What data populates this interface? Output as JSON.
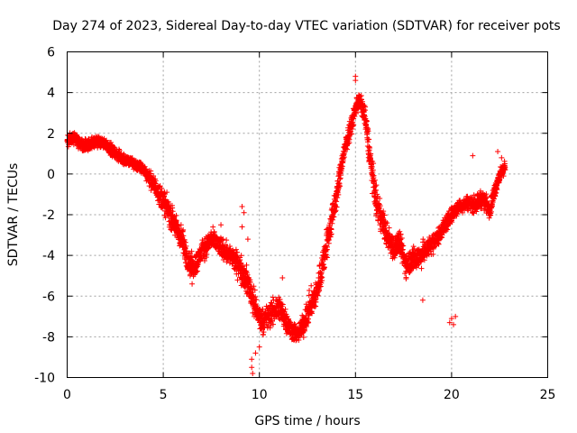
{
  "chart_data": {
    "type": "scatter",
    "title": "Day 274 of 2023, Sidereal Day-to-day VTEC variation (SDTVAR) for receiver pots",
    "xlabel": "GPS time / hours",
    "ylabel": "SDTVAR / TECUs",
    "xlim": [
      0,
      25
    ],
    "ylim": [
      -10,
      6
    ],
    "xticks": [
      0,
      5,
      10,
      15,
      20,
      25
    ],
    "yticks": [
      -10,
      -8,
      -6,
      -4,
      -2,
      0,
      2,
      4,
      6
    ],
    "grid": true,
    "marker": "+",
    "color": "#ff0000",
    "series": [
      {
        "name": "SDTVAR",
        "trend": {
          "x": [
            0.0,
            0.3,
            0.6,
            1.0,
            1.5,
            2.0,
            2.5,
            3.0,
            3.5,
            4.0,
            4.5,
            5.0,
            5.5,
            6.0,
            6.3,
            6.6,
            7.0,
            7.5,
            8.0,
            8.5,
            9.0,
            9.5,
            9.8,
            10.1,
            10.4,
            10.7,
            11.0,
            11.3,
            11.6,
            12.0,
            12.3,
            12.6,
            13.0,
            13.3,
            13.6,
            14.0,
            14.3,
            14.6,
            14.9,
            15.1,
            15.3,
            15.5,
            15.8,
            16.1,
            16.4,
            16.7,
            17.0,
            17.3,
            17.6,
            18.0,
            18.4,
            18.8,
            19.2,
            19.6,
            20.0,
            20.4,
            20.8,
            21.2,
            21.6,
            22.0,
            22.4,
            22.8
          ],
          "y": [
            1.5,
            1.8,
            1.6,
            1.4,
            1.6,
            1.5,
            1.0,
            0.7,
            0.5,
            0.2,
            -0.5,
            -1.3,
            -2.3,
            -3.3,
            -4.3,
            -4.6,
            -3.8,
            -3.2,
            -3.6,
            -4.0,
            -4.6,
            -5.6,
            -6.6,
            -7.2,
            -7.1,
            -6.8,
            -6.5,
            -7.0,
            -7.6,
            -7.9,
            -7.4,
            -6.6,
            -5.8,
            -4.4,
            -3.0,
            -1.2,
            0.6,
            1.8,
            2.8,
            3.6,
            3.4,
            2.8,
            0.5,
            -1.5,
            -2.3,
            -3.2,
            -3.6,
            -3.4,
            -4.4,
            -4.2,
            -4.0,
            -3.6,
            -3.2,
            -2.6,
            -2.0,
            -1.6,
            -1.4,
            -1.5,
            -1.2,
            -1.7,
            -0.3,
            0.4
          ],
          "spread": [
            0.45,
            0.45,
            0.45,
            0.45,
            0.4,
            0.4,
            0.4,
            0.4,
            0.4,
            0.4,
            0.6,
            0.8,
            0.9,
            0.9,
            0.8,
            0.8,
            0.7,
            0.7,
            0.7,
            0.7,
            0.9,
            1.0,
            1.0,
            0.8,
            0.9,
            0.9,
            0.9,
            0.9,
            0.7,
            0.6,
            0.8,
            1.0,
            1.0,
            1.1,
            1.1,
            0.9,
            0.7,
            0.6,
            0.6,
            0.6,
            0.6,
            0.8,
            1.0,
            1.0,
            0.9,
            0.9,
            0.9,
            0.8,
            0.9,
            0.9,
            0.8,
            0.7,
            0.6,
            0.6,
            0.5,
            0.5,
            0.5,
            0.6,
            0.6,
            0.6,
            0.5,
            0.4
          ]
        },
        "outliers": [
          {
            "x": 6.5,
            "y": -5.4
          },
          {
            "x": 6.4,
            "y": -5.0
          },
          {
            "x": 8.0,
            "y": -2.5
          },
          {
            "x": 9.1,
            "y": -2.6
          },
          {
            "x": 9.2,
            "y": -1.9
          },
          {
            "x": 9.1,
            "y": -1.6
          },
          {
            "x": 9.4,
            "y": -3.2
          },
          {
            "x": 9.6,
            "y": -9.1
          },
          {
            "x": 9.6,
            "y": -9.5
          },
          {
            "x": 9.65,
            "y": -9.8
          },
          {
            "x": 9.8,
            "y": -8.8
          },
          {
            "x": 10.0,
            "y": -8.5
          },
          {
            "x": 10.2,
            "y": -7.9
          },
          {
            "x": 11.2,
            "y": -5.1
          },
          {
            "x": 15.0,
            "y": 4.8
          },
          {
            "x": 15.0,
            "y": 4.6
          },
          {
            "x": 20.0,
            "y": -7.1
          },
          {
            "x": 19.9,
            "y": -7.3
          },
          {
            "x": 20.1,
            "y": -7.4
          },
          {
            "x": 20.2,
            "y": -7.0
          },
          {
            "x": 21.1,
            "y": 0.9
          },
          {
            "x": 22.4,
            "y": 1.1
          },
          {
            "x": 22.6,
            "y": 0.8
          },
          {
            "x": 18.5,
            "y": -6.2
          }
        ]
      }
    ]
  }
}
